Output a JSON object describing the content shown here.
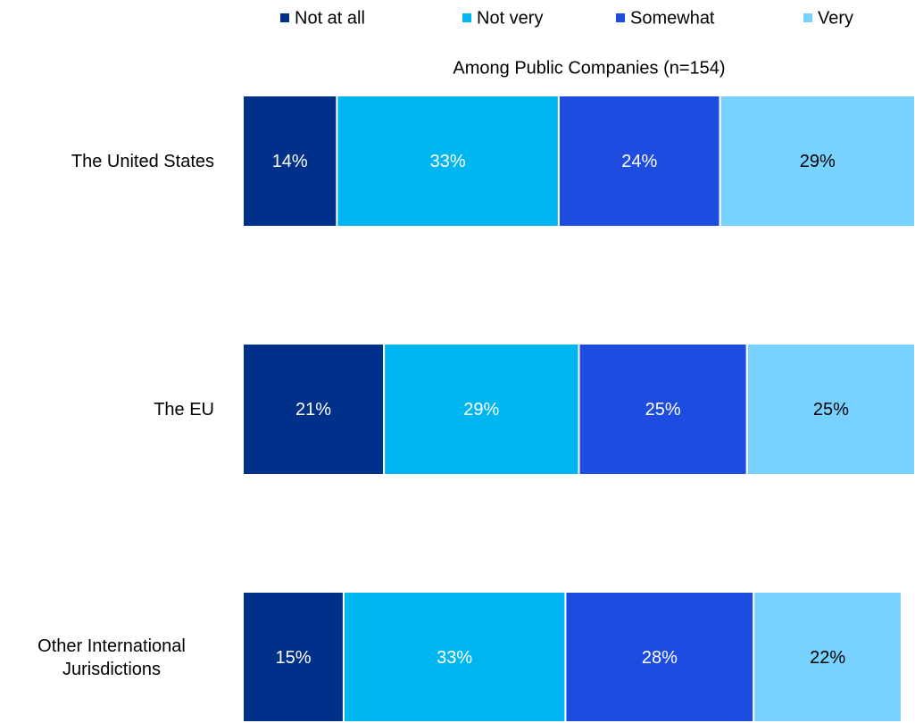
{
  "chart_data": {
    "type": "stacked-bar-horizontal",
    "subtitle": "Among Public Companies (n=154)",
    "categories": [
      "The United States",
      "The EU",
      "Other International Jurisdictions"
    ],
    "xlim": [
      0,
      100
    ],
    "series": [
      {
        "name": "Not at all",
        "color": "#00318a",
        "label_color": "#ffffff",
        "values": [
          14,
          21,
          15
        ],
        "value_labels": [
          "14%",
          "21%",
          "15%"
        ]
      },
      {
        "name": "Not very",
        "color": "#00b6f1",
        "label_color": "#ffffff",
        "values": [
          33,
          29,
          33
        ],
        "value_labels": [
          "33%",
          "29%",
          "33%"
        ]
      },
      {
        "name": "Somewhat",
        "color": "#1f4ce0",
        "label_color": "#ffffff",
        "values": [
          24,
          25,
          28
        ],
        "value_labels": [
          "24%",
          "25%",
          "28%"
        ]
      },
      {
        "name": "Very",
        "color": "#78d2ff",
        "label_color": "#000000",
        "values": [
          29,
          25,
          22
        ],
        "value_labels": [
          "29%",
          "25%",
          "22%"
        ]
      }
    ]
  }
}
